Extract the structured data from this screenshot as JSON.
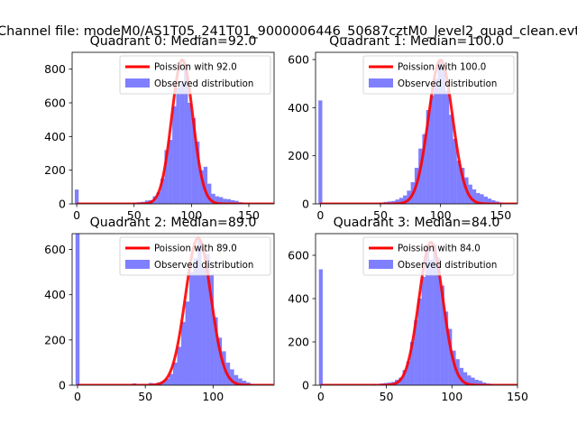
{
  "figure": {
    "suptitle": "Channel file: modeM0/AS1T05_241T01_9000006446_50687cztM0_level2_quad_clean.evt"
  },
  "chart_data": [
    {
      "type": "bar",
      "title": "Quadrant 0: Median=92.0",
      "median": 92.0,
      "xlim": [
        -4,
        172
      ],
      "ylim": [
        0,
        900
      ],
      "xticks": [
        0,
        50,
        100,
        150
      ],
      "yticks": [
        0,
        200,
        400,
        600,
        800
      ],
      "bin_width": 3.4,
      "sigma": 9.2,
      "spike": {
        "x": 0,
        "value": 85
      },
      "series": [
        {
          "name": "Poission with 92.0",
          "kind": "line",
          "peak": 855,
          "color": "#ff0000"
        },
        {
          "name": "Observed distribution",
          "kind": "hist",
          "color": "#0000ff",
          "bins": [
            {
              "x": 51,
              "value": 8
            },
            {
              "x": 54.4,
              "value": 10
            },
            {
              "x": 57.8,
              "value": 12
            },
            {
              "x": 61.2,
              "value": 20
            },
            {
              "x": 64.6,
              "value": 22
            },
            {
              "x": 68,
              "value": 45
            },
            {
              "x": 71.4,
              "value": 70
            },
            {
              "x": 74.8,
              "value": 150
            },
            {
              "x": 78.2,
              "value": 320
            },
            {
              "x": 81.6,
              "value": 380
            },
            {
              "x": 85,
              "value": 580
            },
            {
              "x": 88.4,
              "value": 690
            },
            {
              "x": 91.8,
              "value": 720
            },
            {
              "x": 95.2,
              "value": 830
            },
            {
              "x": 98.6,
              "value": 600
            },
            {
              "x": 102,
              "value": 510
            },
            {
              "x": 105.4,
              "value": 370
            },
            {
              "x": 108.8,
              "value": 200
            },
            {
              "x": 112.2,
              "value": 220
            },
            {
              "x": 115.6,
              "value": 120
            },
            {
              "x": 119,
              "value": 60
            },
            {
              "x": 122.4,
              "value": 45
            },
            {
              "x": 125.8,
              "value": 40
            },
            {
              "x": 129.2,
              "value": 30
            },
            {
              "x": 132.6,
              "value": 28
            },
            {
              "x": 136,
              "value": 22
            },
            {
              "x": 139.4,
              "value": 18
            },
            {
              "x": 142.8,
              "value": 10
            },
            {
              "x": 146.2,
              "value": 8
            }
          ]
        }
      ],
      "legend": [
        "Poission with 92.0",
        "Observed distribution"
      ]
    },
    {
      "type": "bar",
      "title": "Quadrant 1: Median=100.0",
      "median": 100.0,
      "xlim": [
        -4,
        164
      ],
      "ylim": [
        0,
        630
      ],
      "xticks": [
        0,
        50,
        100,
        150
      ],
      "yticks": [
        0,
        200,
        400,
        600
      ],
      "bin_width": 3.2,
      "sigma": 10.0,
      "spike": {
        "x": 0,
        "value": 430
      },
      "series": [
        {
          "name": "Poission with 100.0",
          "kind": "line",
          "peak": 598,
          "color": "#ff0000"
        },
        {
          "name": "Observed distribution",
          "kind": "hist",
          "color": "#0000ff",
          "bins": [
            {
              "x": 51.2,
              "value": 6
            },
            {
              "x": 54.4,
              "value": 8
            },
            {
              "x": 57.6,
              "value": 10
            },
            {
              "x": 60.8,
              "value": 12
            },
            {
              "x": 64,
              "value": 18
            },
            {
              "x": 67.2,
              "value": 25
            },
            {
              "x": 70.4,
              "value": 35
            },
            {
              "x": 73.6,
              "value": 55
            },
            {
              "x": 76.8,
              "value": 90
            },
            {
              "x": 80,
              "value": 150
            },
            {
              "x": 83.2,
              "value": 230
            },
            {
              "x": 86.4,
              "value": 290
            },
            {
              "x": 89.6,
              "value": 390
            },
            {
              "x": 92.8,
              "value": 450
            },
            {
              "x": 96,
              "value": 520
            },
            {
              "x": 99.2,
              "value": 590
            },
            {
              "x": 102.4,
              "value": 560
            },
            {
              "x": 105.6,
              "value": 470
            },
            {
              "x": 108.8,
              "value": 370
            },
            {
              "x": 112,
              "value": 270
            },
            {
              "x": 115.2,
              "value": 180
            },
            {
              "x": 118.4,
              "value": 150
            },
            {
              "x": 121.6,
              "value": 110
            },
            {
              "x": 124.8,
              "value": 80
            },
            {
              "x": 128,
              "value": 60
            },
            {
              "x": 131.2,
              "value": 45
            },
            {
              "x": 134.4,
              "value": 40
            },
            {
              "x": 137.6,
              "value": 30
            },
            {
              "x": 140.8,
              "value": 22
            },
            {
              "x": 144,
              "value": 15
            },
            {
              "x": 147.2,
              "value": 10
            },
            {
              "x": 150.4,
              "value": 6
            }
          ]
        }
      ],
      "legend": [
        "Poission with 100.0",
        "Observed distribution"
      ]
    },
    {
      "type": "bar",
      "title": "Quadrant 2: Median=89.0",
      "median": 89.0,
      "xlim": [
        -4,
        145
      ],
      "ylim": [
        0,
        670
      ],
      "xticks": [
        0,
        50,
        100
      ],
      "yticks": [
        0,
        200,
        400,
        600
      ],
      "bin_width": 3.0,
      "sigma": 9.4,
      "spike": {
        "x": 0,
        "value": 680
      },
      "series": [
        {
          "name": "Poission with 89.0",
          "kind": "line",
          "peak": 650,
          "color": "#ff0000"
        },
        {
          "name": "Observed distribution",
          "kind": "hist",
          "color": "#0000ff",
          "bins": [
            {
              "x": 42,
              "value": 8
            },
            {
              "x": 48,
              "value": 6
            },
            {
              "x": 54,
              "value": 10
            },
            {
              "x": 57,
              "value": 8
            },
            {
              "x": 60,
              "value": 12
            },
            {
              "x": 63,
              "value": 18
            },
            {
              "x": 66,
              "value": 28
            },
            {
              "x": 69,
              "value": 50
            },
            {
              "x": 72,
              "value": 100
            },
            {
              "x": 75,
              "value": 170
            },
            {
              "x": 78,
              "value": 280
            },
            {
              "x": 81,
              "value": 370
            },
            {
              "x": 84,
              "value": 500
            },
            {
              "x": 87,
              "value": 560
            },
            {
              "x": 90,
              "value": 640
            },
            {
              "x": 93,
              "value": 520
            },
            {
              "x": 96,
              "value": 580
            },
            {
              "x": 99,
              "value": 490
            },
            {
              "x": 102,
              "value": 300
            },
            {
              "x": 105,
              "value": 210
            },
            {
              "x": 108,
              "value": 150
            },
            {
              "x": 111,
              "value": 100
            },
            {
              "x": 114,
              "value": 70
            },
            {
              "x": 117,
              "value": 45
            },
            {
              "x": 120,
              "value": 30
            },
            {
              "x": 123,
              "value": 20
            },
            {
              "x": 126,
              "value": 12
            },
            {
              "x": 129,
              "value": 6
            }
          ]
        }
      ],
      "legend": [
        "Poission with 89.0",
        "Observed distribution"
      ]
    },
    {
      "type": "bar",
      "title": "Quadrant 3: Median=84.0",
      "median": 84.0,
      "xlim": [
        -4,
        150
      ],
      "ylim": [
        0,
        700
      ],
      "xticks": [
        0,
        50,
        100,
        150
      ],
      "yticks": [
        0,
        200,
        400,
        600
      ],
      "bin_width": 2.9,
      "sigma": 9.1,
      "spike": {
        "x": 0,
        "value": 535
      },
      "series": [
        {
          "name": "Poission with 84.0",
          "kind": "line",
          "peak": 660,
          "color": "#ff0000"
        },
        {
          "name": "Observed distribution",
          "kind": "hist",
          "color": "#0000ff",
          "bins": [
            {
              "x": 40.6,
              "value": 6
            },
            {
              "x": 46.4,
              "value": 8
            },
            {
              "x": 49.3,
              "value": 10
            },
            {
              "x": 52.2,
              "value": 12
            },
            {
              "x": 55.1,
              "value": 15
            },
            {
              "x": 58,
              "value": 25
            },
            {
              "x": 60.9,
              "value": 35
            },
            {
              "x": 63.8,
              "value": 70
            },
            {
              "x": 66.7,
              "value": 110
            },
            {
              "x": 69.6,
              "value": 200
            },
            {
              "x": 72.5,
              "value": 300
            },
            {
              "x": 75.4,
              "value": 400
            },
            {
              "x": 78.3,
              "value": 500
            },
            {
              "x": 81.2,
              "value": 640
            },
            {
              "x": 84.1,
              "value": 580
            },
            {
              "x": 87,
              "value": 650
            },
            {
              "x": 89.9,
              "value": 590
            },
            {
              "x": 92.8,
              "value": 460
            },
            {
              "x": 95.7,
              "value": 340
            },
            {
              "x": 98.6,
              "value": 260
            },
            {
              "x": 101.5,
              "value": 160
            },
            {
              "x": 104.4,
              "value": 120
            },
            {
              "x": 107.3,
              "value": 80
            },
            {
              "x": 110.2,
              "value": 60
            },
            {
              "x": 113.1,
              "value": 45
            },
            {
              "x": 116,
              "value": 35
            },
            {
              "x": 118.9,
              "value": 25
            },
            {
              "x": 121.8,
              "value": 20
            },
            {
              "x": 124.7,
              "value": 12
            },
            {
              "x": 127.6,
              "value": 8
            },
            {
              "x": 130.5,
              "value": 6
            }
          ]
        }
      ],
      "legend": [
        "Poission with 84.0",
        "Observed distribution"
      ]
    }
  ]
}
